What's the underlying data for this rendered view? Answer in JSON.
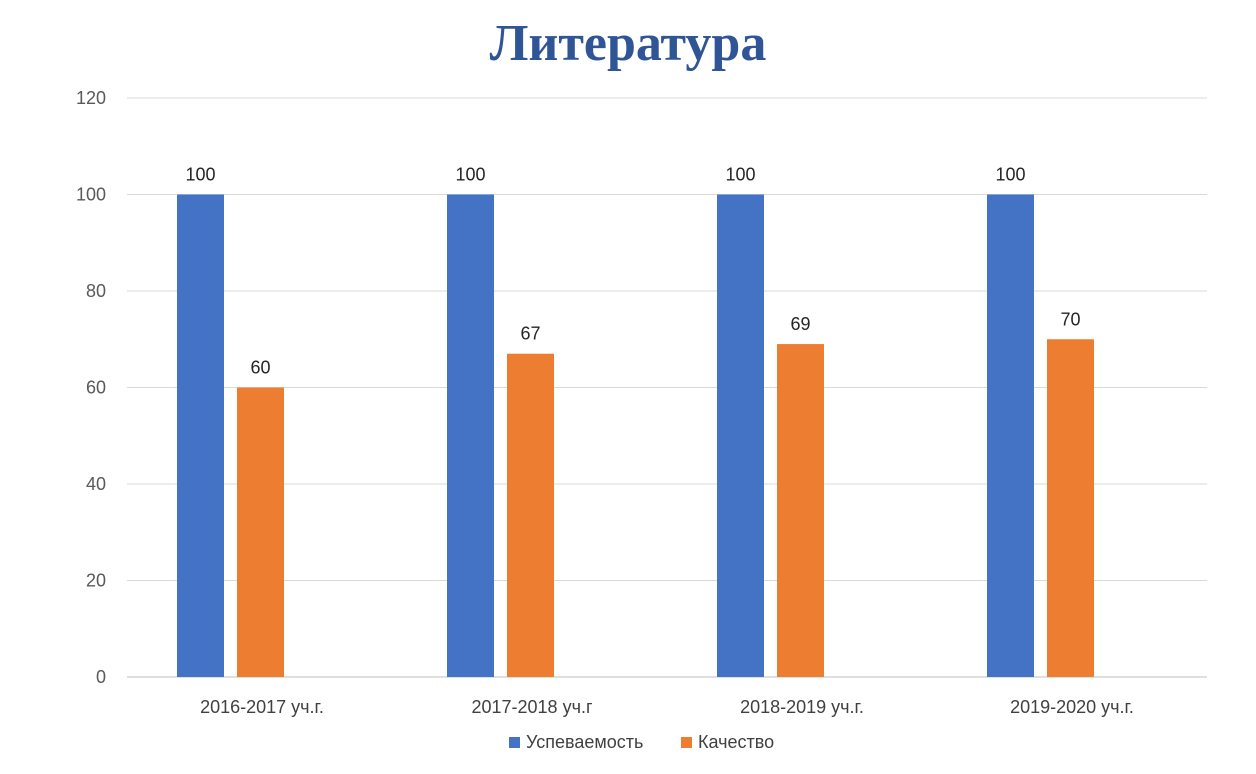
{
  "chart_data": {
    "type": "bar",
    "title": "Литература",
    "xlabel": "",
    "ylabel": "",
    "categories": [
      "2016-2017 уч.г.",
      "2017-2018 уч.г",
      "2018-2019 уч.г.",
      "2019-2020 уч.г."
    ],
    "series": [
      {
        "name": "Успеваемость",
        "values": [
          100,
          100,
          100,
          100
        ],
        "color": "#4472c4"
      },
      {
        "name": "Качество",
        "values": [
          60,
          67,
          69,
          70
        ],
        "color": "#ed7d31"
      }
    ],
    "ylim": [
      0,
      120
    ],
    "yticks": [
      0,
      20,
      40,
      60,
      80,
      100,
      120
    ],
    "grid": true,
    "data_labels": true,
    "legend_position": "bottom"
  }
}
